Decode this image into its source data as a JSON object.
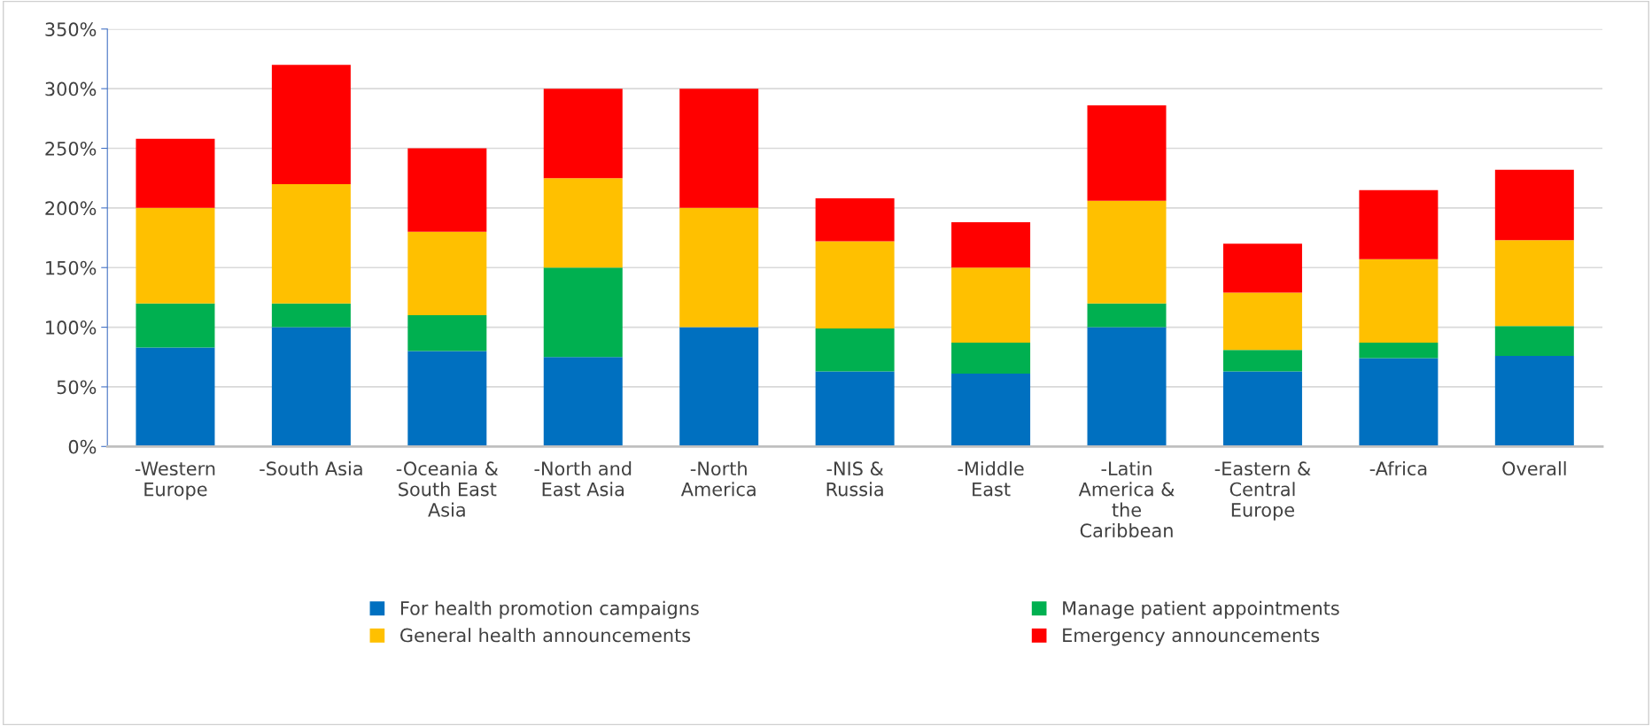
{
  "chart_data": {
    "type": "bar",
    "stacked": true,
    "categories": [
      "-Western\nEurope",
      "-South Asia",
      "-Oceania &\nSouth East\nAsia",
      "-North and\nEast Asia",
      "-North\nAmerica",
      "-NIS &\nRussia",
      "-Middle\nEast",
      "-Latin\nAmerica &\nthe\nCaribbean",
      "-Eastern &\nCentral\nEurope",
      "-Africa",
      "Overall"
    ],
    "series": [
      {
        "name": "For health promotion campaigns",
        "color": "#0070c0",
        "values": [
          83,
          100,
          80,
          75,
          100,
          63,
          61,
          100,
          63,
          74,
          76
        ]
      },
      {
        "name": "Manage patient appointments",
        "color": "#00b050",
        "values": [
          37,
          20,
          30,
          75,
          0,
          36,
          26,
          20,
          18,
          13,
          25
        ]
      },
      {
        "name": "General health announcements",
        "color": "#ffc000",
        "values": [
          80,
          100,
          70,
          75,
          100,
          73,
          63,
          86,
          48,
          70,
          72
        ]
      },
      {
        "name": "Emergency announcements",
        "color": "#ff0000",
        "values": [
          58,
          100,
          70,
          75,
          100,
          36,
          38,
          80,
          41,
          58,
          59
        ]
      }
    ],
    "ylim": [
      0,
      350
    ],
    "yticks": [
      {
        "value": 0,
        "label": "0%"
      },
      {
        "value": 50,
        "label": "50%"
      },
      {
        "value": 100,
        "label": "100%"
      },
      {
        "value": 150,
        "label": "150%"
      },
      {
        "value": 200,
        "label": "200%"
      },
      {
        "value": 250,
        "label": "250%"
      },
      {
        "value": 300,
        "label": "300%"
      },
      {
        "value": 350,
        "label": "350%"
      }
    ],
    "grid": "y",
    "legend": "bottom"
  }
}
